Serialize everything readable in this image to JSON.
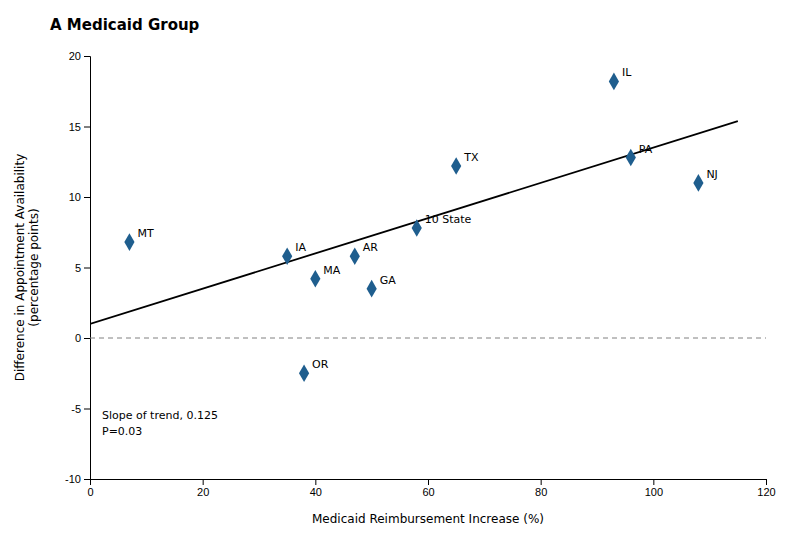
{
  "chart_data": {
    "type": "scatter",
    "title": "A Medicaid Group",
    "xlabel": "Medicaid Reimbursement Increase (%)",
    "ylabel": "Difference in Appointment Availability\n(percentage points)",
    "xlim": [
      0,
      120
    ],
    "ylim": [
      -10,
      20
    ],
    "xticks": [
      0,
      20,
      40,
      60,
      80,
      100,
      120
    ],
    "yticks": [
      -10,
      -5,
      0,
      5,
      10,
      15,
      20
    ],
    "grid": false,
    "hline": 0,
    "annotations": [
      "Slope of trend, 0.125",
      "P=0.03"
    ],
    "series": [
      {
        "type": "scatter",
        "marker": "diamond",
        "color": "#1f5e8e",
        "x": [
          7,
          35,
          40,
          47,
          50,
          38,
          58,
          65,
          93,
          96,
          108
        ],
        "values": [
          6.8,
          5.8,
          4.2,
          5.8,
          3.5,
          -2.5,
          7.8,
          12.2,
          18.2,
          12.8,
          11.0
        ],
        "labels": [
          "MT",
          "IA",
          "MA",
          "AR",
          "GA",
          "OR",
          "10 State",
          "TX",
          "IL",
          "PA",
          "NJ"
        ]
      },
      {
        "type": "line",
        "color": "#000000",
        "x": [
          0,
          115
        ],
        "values": [
          1,
          15.375
        ]
      }
    ]
  }
}
